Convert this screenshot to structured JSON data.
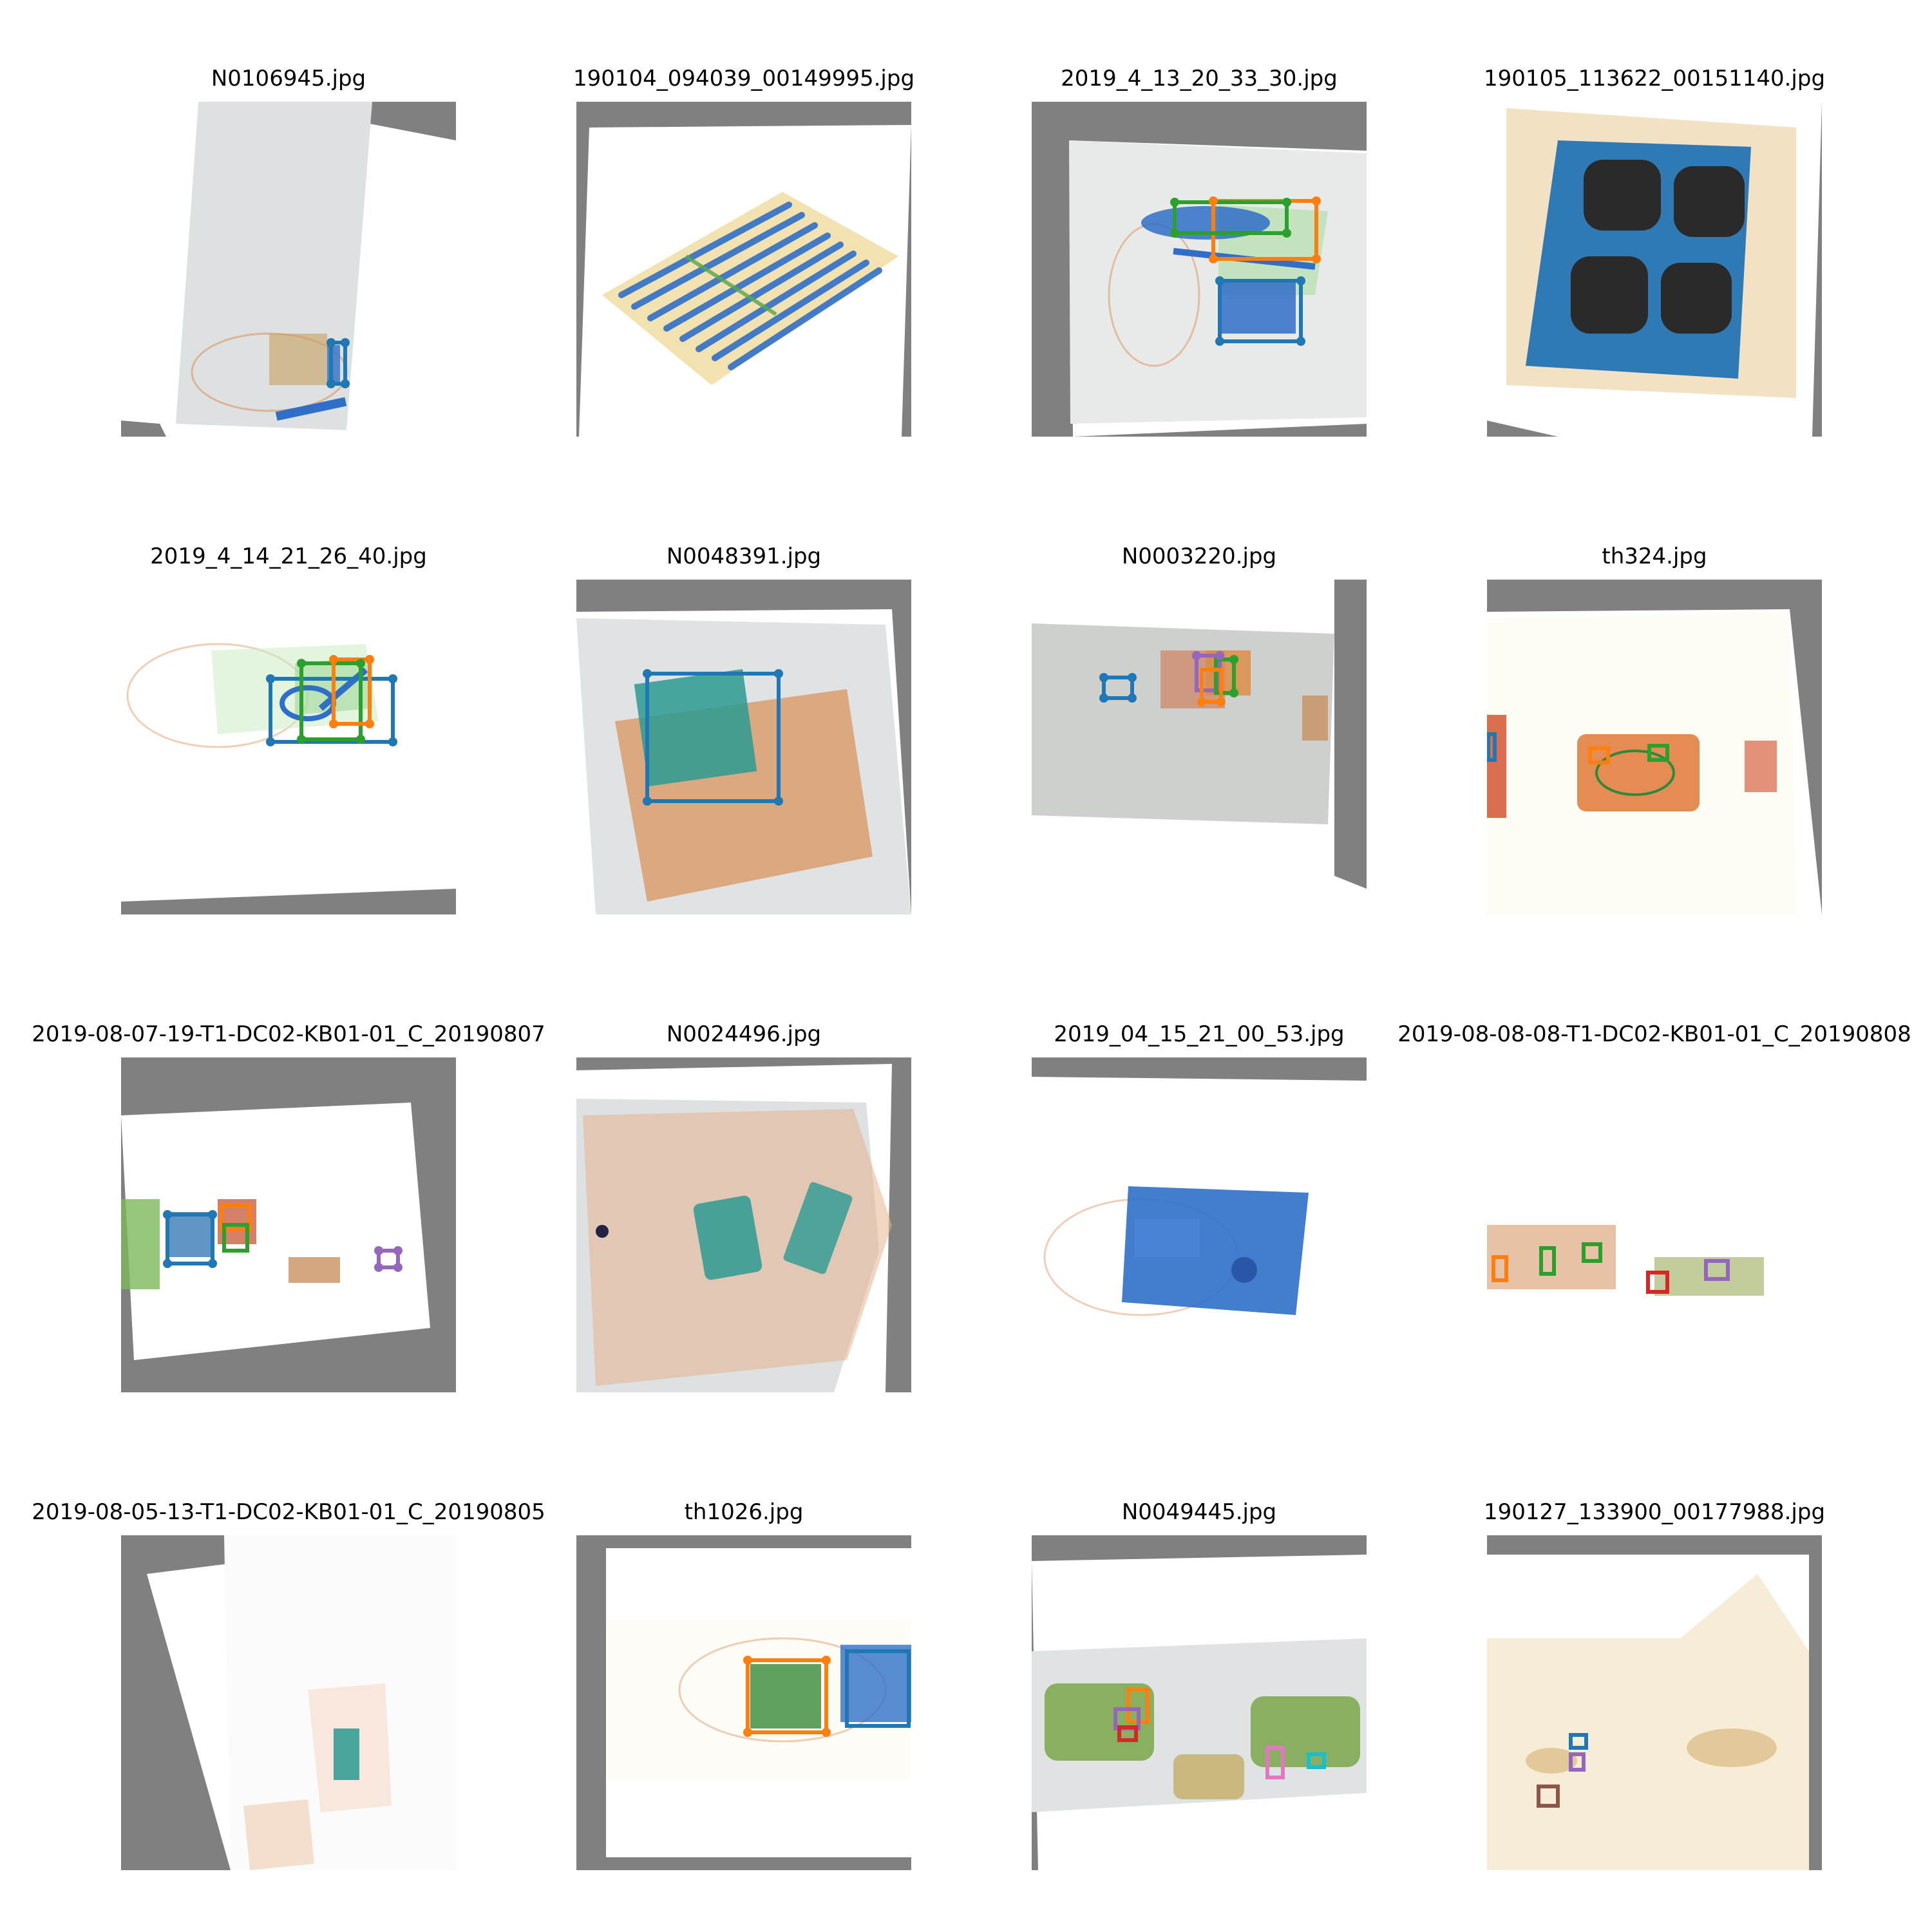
{
  "figure": {
    "images": [
      {
        "filename": "N0106945.jpg"
      },
      {
        "filename": "190104_094039_00149995.jpg"
      },
      {
        "filename": "2019_4_13_20_33_30.jpg"
      },
      {
        "filename": "190105_113622_00151140.jpg"
      },
      {
        "filename": "2019_4_14_21_26_40.jpg"
      },
      {
        "filename": "N0048391.jpg"
      },
      {
        "filename": "N0003220.jpg"
      },
      {
        "filename": "th324.jpg"
      },
      {
        "filename": "2019-08-07-19-T1-DC02-KB01-01_C_20190807"
      },
      {
        "filename": "N0024496.jpg"
      },
      {
        "filename": "2019_04_15_21_00_53.jpg"
      },
      {
        "filename": "2019-08-08-08-T1-DC02-KB01-01_C_20190808"
      },
      {
        "filename": "2019-08-05-13-T1-DC02-KB01-01_C_20190805"
      },
      {
        "filename": "th1026.jpg"
      },
      {
        "filename": "N0049445.jpg"
      },
      {
        "filename": "190127_133900_00177988.jpg"
      }
    ]
  },
  "colors": {
    "padding_gray": "#808080",
    "bbox_blue": "#1f77b4",
    "bbox_orange": "#ff7f0e",
    "bbox_green": "#2ca02c",
    "bbox_red": "#d62728",
    "bbox_purple": "#9467bd",
    "bbox_brown": "#8c564b",
    "bbox_pink": "#e377c2",
    "bbox_cyan": "#17becf",
    "xray_orange": "#e0a070",
    "xray_blue": "#2f6fc8",
    "xray_green": "#5aa64a"
  }
}
